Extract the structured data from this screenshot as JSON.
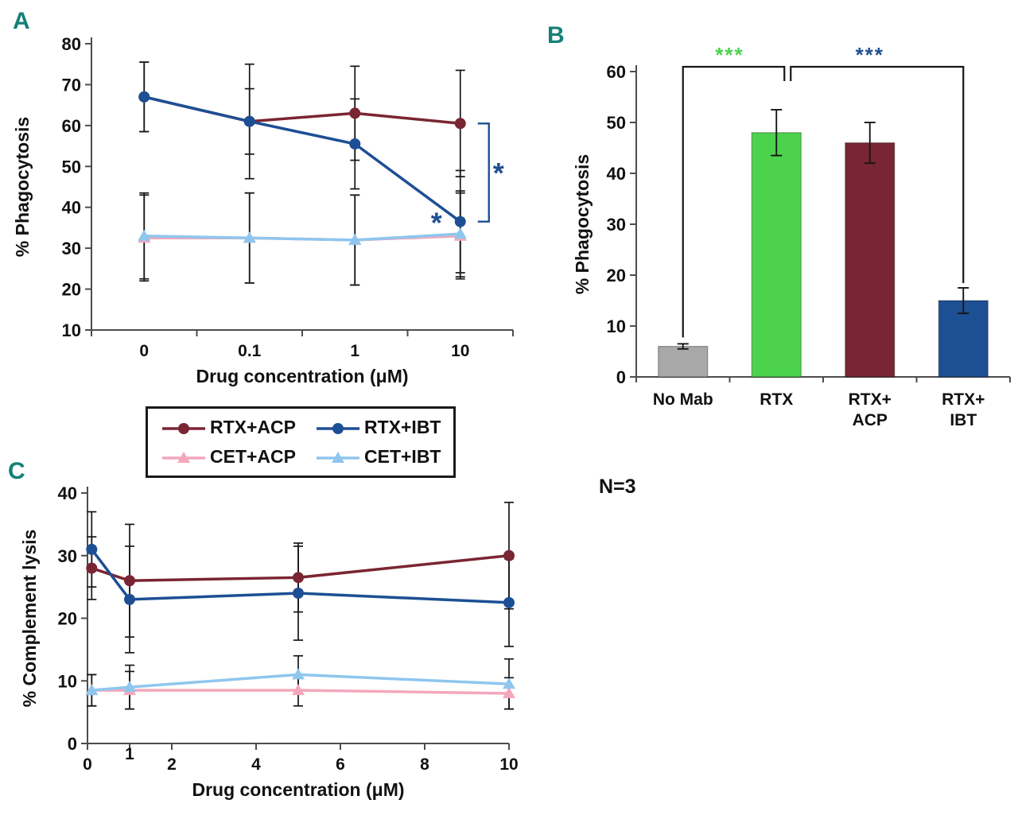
{
  "panels": {
    "a": "A",
    "b": "B",
    "c": "C"
  },
  "note": "N=3",
  "colors": {
    "rtx_acp": "#7a2533",
    "rtx_ibt": "#1d4f94",
    "cet_acp": "#f4a7bc",
    "cet_ibt": "#8fc6ee",
    "green": "#4cd24c",
    "gray": "#a8a8a8",
    "panel_letter": "#148077",
    "error_bar": "#161616",
    "axis": "#4d4d4d",
    "text": "#111111"
  },
  "legend": {
    "items": [
      {
        "label": "RTX+ACP",
        "marker": "circle",
        "color": "#7a2533"
      },
      {
        "label": "RTX+IBT",
        "marker": "circle",
        "color": "#1d4f94"
      },
      {
        "label": "CET+ACP",
        "marker": "triangle",
        "color": "#f4a7bc"
      },
      {
        "label": "CET+IBT",
        "marker": "triangle",
        "color": "#8fc6ee"
      }
    ]
  },
  "chart_data": [
    {
      "id": "panel-a",
      "type": "line",
      "xlabel": "Drug concentration (μM)",
      "ylabel": "% Phagocytosis",
      "x_categories": [
        "0",
        "0.1",
        "1",
        "10"
      ],
      "ylim": [
        10,
        80
      ],
      "yticks": [
        10,
        20,
        30,
        40,
        50,
        60,
        70,
        80
      ],
      "grid": false,
      "legend_position": "below",
      "series": [
        {
          "name": "RTX+ACP",
          "marker": "circle",
          "color": "#7a2533",
          "values": [
            67,
            61,
            63,
            60.5
          ],
          "err": [
            8.5,
            14,
            11.5,
            13
          ]
        },
        {
          "name": "RTX+IBT",
          "marker": "circle",
          "color": "#1d4f94",
          "values": [
            67,
            61,
            55.5,
            36.5
          ],
          "err": [
            8.5,
            8,
            11,
            12.5
          ]
        },
        {
          "name": "CET+ACP",
          "marker": "triangle",
          "color": "#f4a7bc",
          "values": [
            32.5,
            32.5,
            32,
            33
          ],
          "err": [
            10.5,
            11,
            11,
            10.5
          ]
        },
        {
          "name": "CET+IBT",
          "marker": "triangle",
          "color": "#8fc6ee",
          "values": [
            33,
            32.5,
            32,
            33.5
          ],
          "err": [
            10.5,
            11,
            11,
            10.5
          ]
        }
      ],
      "annotations": {
        "point_star": {
          "text": "*",
          "color": "#1d4f94"
        },
        "bracket_star": {
          "text": "*",
          "color": "#1d4f94"
        }
      }
    },
    {
      "id": "panel-b",
      "type": "bar",
      "ylabel": "% Phagocytosis",
      "categories": [
        "No Mab",
        "RTX",
        "RTX+\nACP",
        "RTX+\nIBT"
      ],
      "values": [
        6,
        48,
        46,
        15
      ],
      "errors": [
        0.5,
        4.5,
        4,
        2.5
      ],
      "bar_colors": [
        "#a8a8a8",
        "#4cd24c",
        "#7a2533",
        "#1d4f94"
      ],
      "ylim": [
        0,
        60
      ],
      "yticks": [
        0,
        10,
        20,
        30,
        40,
        50,
        60
      ],
      "grid": false,
      "significance": [
        {
          "label": "***",
          "color": "#4cd24c",
          "from": 0,
          "to": 1,
          "drop": "left"
        },
        {
          "label": "***",
          "color": "#1d4f94",
          "from": 1,
          "to": 3,
          "drop": "right"
        }
      ],
      "note": "N=3"
    },
    {
      "id": "panel-c",
      "type": "line",
      "xlabel": "Drug concentration (μM)",
      "ylabel": "% Complement lysis",
      "x": [
        0.1,
        1,
        5,
        10
      ],
      "xlim": [
        0,
        10
      ],
      "xticks": [
        0,
        1,
        2,
        4,
        6,
        8,
        10
      ],
      "ylim": [
        0,
        40
      ],
      "yticks": [
        0,
        10,
        20,
        30,
        40
      ],
      "grid": false,
      "series": [
        {
          "name": "RTX+ACP",
          "marker": "circle",
          "color": "#7a2533",
          "values": [
            28,
            26,
            26.5,
            30
          ],
          "err": [
            5,
            9,
            5.5,
            8.5
          ]
        },
        {
          "name": "RTX+IBT",
          "marker": "circle",
          "color": "#1d4f94",
          "values": [
            31,
            23,
            24,
            22.5
          ],
          "err": [
            6,
            8.5,
            7.5,
            7
          ]
        },
        {
          "name": "CET+ACP",
          "marker": "triangle",
          "color": "#f4a7bc",
          "values": [
            8.5,
            8.5,
            8.5,
            8
          ],
          "err": [
            2.5,
            3,
            2.5,
            2.5
          ]
        },
        {
          "name": "CET+IBT",
          "marker": "triangle",
          "color": "#8fc6ee",
          "values": [
            8.5,
            9,
            11,
            9.5
          ],
          "err": [
            2.5,
            3.5,
            3,
            4
          ]
        }
      ]
    }
  ]
}
